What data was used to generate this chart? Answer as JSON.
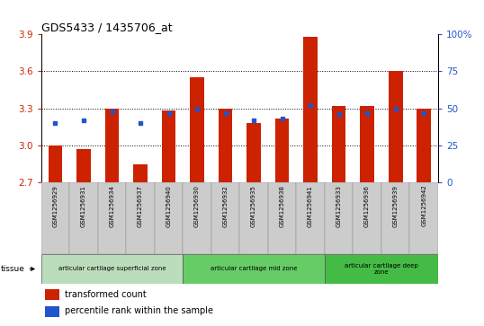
{
  "title": "GDS5433 / 1435706_at",
  "samples": [
    "GSM1256929",
    "GSM1256931",
    "GSM1256934",
    "GSM1256937",
    "GSM1256940",
    "GSM1256930",
    "GSM1256932",
    "GSM1256935",
    "GSM1256938",
    "GSM1256941",
    "GSM1256933",
    "GSM1256936",
    "GSM1256939",
    "GSM1256942"
  ],
  "bar_values": [
    3.0,
    2.97,
    3.3,
    2.85,
    3.28,
    3.55,
    3.3,
    3.18,
    3.22,
    3.88,
    3.32,
    3.32,
    3.6,
    3.3
  ],
  "percentile_values": [
    40,
    42,
    48,
    40,
    47,
    50,
    47,
    42,
    43,
    52,
    46,
    47,
    50,
    47
  ],
  "ylim_left": [
    2.7,
    3.9
  ],
  "ylim_right": [
    0,
    100
  ],
  "yticks_left": [
    2.7,
    3.0,
    3.3,
    3.6,
    3.9
  ],
  "yticks_right": [
    0,
    25,
    50,
    75,
    100
  ],
  "ytick_labels_right": [
    "0",
    "25",
    "50",
    "75",
    "100%"
  ],
  "bar_color": "#cc2200",
  "dot_color": "#2255cc",
  "bar_bottom": 2.7,
  "groups": [
    {
      "label": "articular cartilage superficial zone",
      "start": 0,
      "end": 5,
      "color": "#bbddbb"
    },
    {
      "label": "articular cartilage mid zone",
      "start": 5,
      "end": 10,
      "color": "#66cc66"
    },
    {
      "label": "articular cartilage deep\nzone",
      "start": 10,
      "end": 14,
      "color": "#44bb44"
    }
  ],
  "tissue_label": "tissue",
  "legend_bar_label": "transformed count",
  "legend_dot_label": "percentile rank within the sample",
  "grid_color": "black",
  "background_color": "#ffffff",
  "plot_bg": "#ffffff",
  "tick_area_bg": "#cccccc"
}
